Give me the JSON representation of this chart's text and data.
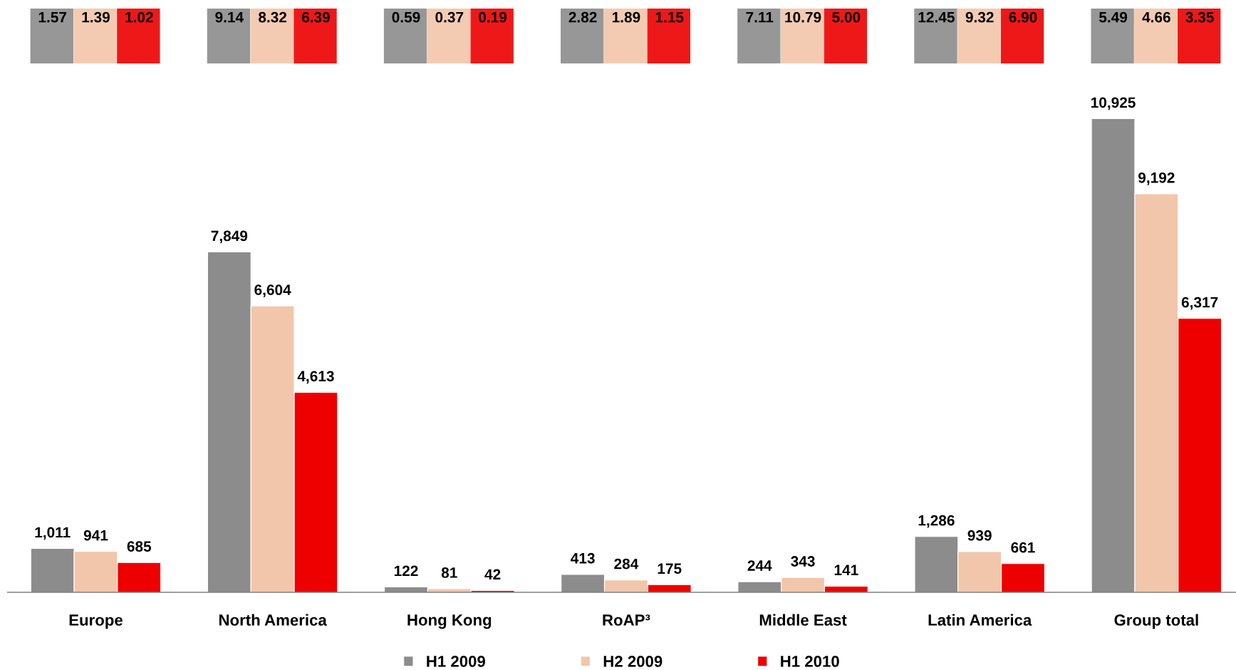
{
  "chart_data": {
    "type": "bar",
    "categories": [
      "Europe",
      "North America",
      "Hong Kong",
      "RoAP³",
      "Middle East",
      "Latin America",
      "Group total"
    ],
    "series": [
      {
        "name": "H1 2009",
        "color": "#8c8c8c",
        "values": [
          1011,
          7849,
          122,
          413,
          244,
          1286,
          10925
        ],
        "value_labels": [
          "1,011",
          "7,849",
          "122",
          "413",
          "244",
          "1,286",
          "10,925"
        ]
      },
      {
        "name": "H2 2009",
        "color": "#f2c6aa",
        "values": [
          941,
          6604,
          81,
          284,
          343,
          939,
          9192
        ],
        "value_labels": [
          "941",
          "6,604",
          "81",
          "284",
          "343",
          "939",
          "9,192"
        ]
      },
      {
        "name": "H1 2010",
        "color": "#ee0000",
        "values": [
          685,
          4613,
          42,
          175,
          141,
          661,
          6317
        ],
        "value_labels": [
          "685",
          "4,613",
          "42",
          "175",
          "141",
          "661",
          "6,317"
        ]
      }
    ],
    "annotations": [
      "1.57",
      "1.39",
      "1.02",
      "9.14",
      "8.32",
      "6.39",
      "0.59",
      "0.37",
      "0.19",
      "2.82",
      "1.89",
      "1.15",
      "7.11",
      "10.79",
      "5.00",
      "12.45",
      "9.32",
      "6.90",
      "5.49",
      "4.66",
      "3.35"
    ],
    "grid": false,
    "legend": "bottom"
  }
}
